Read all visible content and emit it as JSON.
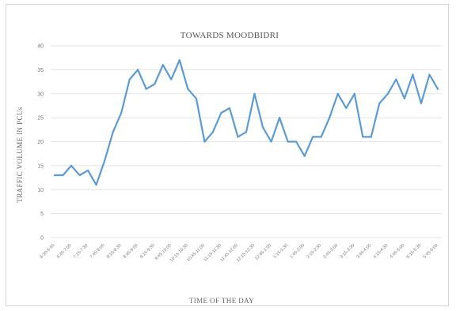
{
  "chart_data": {
    "type": "line",
    "title": "TOWARDS MOODBIDRI",
    "xlabel": "TIME OF THE DAY",
    "ylabel": "TRAFFIC VOLUME IN PCUs",
    "ylim": [
      0,
      40
    ],
    "yticks": [
      0,
      5,
      10,
      15,
      20,
      25,
      30,
      35,
      40
    ],
    "grid": true,
    "legend": "none",
    "color": "#5b9bd5",
    "tick_labels": [
      "6:30-6:45",
      "6:45-7:00",
      "7:15-7:30",
      "7:45-8:00",
      "8:15-8:30",
      "8:45-9:00",
      "9:15-9:30",
      "9:45-10:00",
      "10:15-10:30",
      "10:45-11:00",
      "11:15-11:30",
      "11:45-12:00",
      "12:15-12:30",
      "12:45-1:00",
      "1:15-1:30",
      "1:45-2:00",
      "2:15-2:30",
      "2:45-3:00",
      "3:15-3:30",
      "3:45-4:00",
      "4:15-4:30",
      "4:45-5:00",
      "5:15-5:30",
      "5:45-6:00"
    ],
    "values": [
      13,
      13,
      15,
      13,
      14,
      11,
      16,
      22,
      26,
      33,
      35,
      31,
      32,
      36,
      33,
      37,
      31,
      29,
      20,
      22,
      26,
      27,
      21,
      22,
      30,
      23,
      20,
      25,
      20,
      20,
      17,
      21,
      21,
      25,
      30,
      27,
      30,
      21,
      21,
      28,
      30,
      33,
      29,
      34,
      28,
      34,
      31
    ]
  }
}
